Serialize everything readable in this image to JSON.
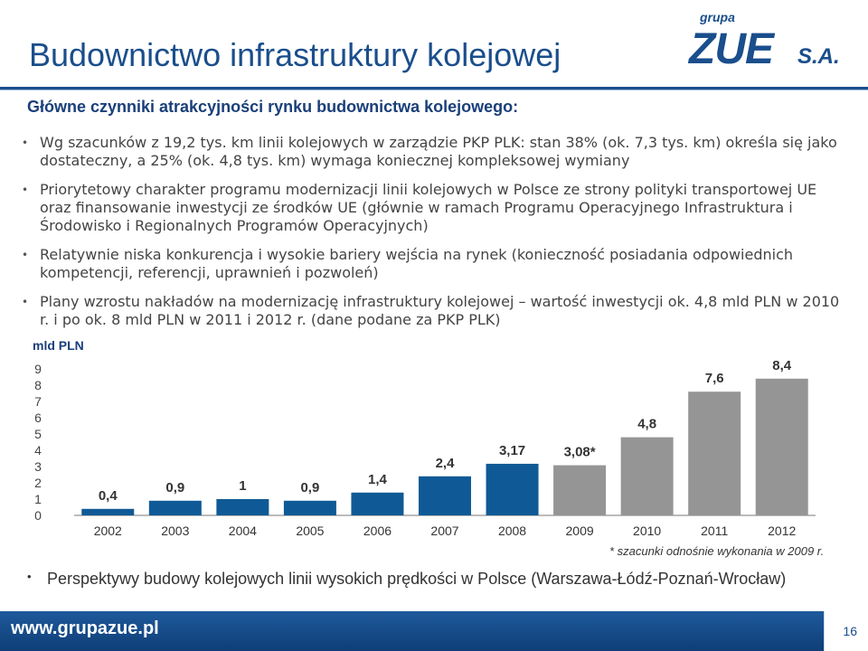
{
  "title": "Budownictwo infrastruktury kolejowej",
  "logo": {
    "top": "grupa",
    "main": "ZUE",
    "suffix": "S.A."
  },
  "subtitle": "Główne czynniki atrakcyjności rynku budownictwa kolejowego:",
  "bullets": [
    "Wg szacunków z 19,2 tys. km linii kolejowych w zarządzie PKP PLK: stan 38% (ok. 7,3 tys. km) określa się jako dostateczny, a 25% (ok. 4,8 tys. km) wymaga koniecznej kompleksowej wymiany",
    "Priorytetowy charakter programu modernizacji linii kolejowych w Polsce ze strony polityki transportowej UE oraz finansowanie inwestycji ze środków UE (głównie w ramach Programu Operacyjnego Infrastruktura i Środowisko i Regionalnych Programów Operacyjnych)",
    "Relatywnie niska konkurencja i wysokie bariery wejścia na rynek (konieczność posiadania odpowiednich kompetencji, referencji, uprawnień i pozwoleń)",
    "Plany wzrostu nakładów na modernizację infrastruktury kolejowej – wartość inwestycji ok. 4,8 mld PLN w 2010 r. i po ok. 8 mld PLN w 2011 i 2012 r. (dane podane za PKP PLK)"
  ],
  "chart_data": {
    "type": "bar",
    "ylabel": "mld PLN",
    "ylim": [
      0,
      9
    ],
    "yticks": [
      0,
      1,
      2,
      3,
      4,
      5,
      6,
      7,
      8,
      9
    ],
    "grid": false,
    "legend": "none",
    "categories": [
      "2002",
      "2003",
      "2004",
      "2005",
      "2006",
      "2007",
      "2008",
      "2009",
      "2010",
      "2011",
      "2012"
    ],
    "values": [
      0.4,
      0.9,
      1,
      0.9,
      1.4,
      2.4,
      3.17,
      3.08,
      4.8,
      7.6,
      8.4
    ],
    "labels": [
      "0,4",
      "0,9",
      "1",
      "0,9",
      "1,4",
      "2,4",
      "3,17",
      "3,08*",
      "4,8",
      "7,6",
      "8,4"
    ],
    "estimated": [
      false,
      false,
      false,
      false,
      false,
      false,
      false,
      true,
      true,
      true,
      true
    ],
    "colors": {
      "actual": "#0f5a96",
      "estimate": "#959595"
    }
  },
  "footnote": "* szacunki odnośnie wykonania w 2009 r.",
  "bottom_bullet": "Perspektywy budowy kolejowych linii wysokich prędkości w Polsce (Warszawa-Łódź-Poznań-Wrocław)",
  "footer": {
    "url": "www.grupazue.pl",
    "page": "16"
  }
}
